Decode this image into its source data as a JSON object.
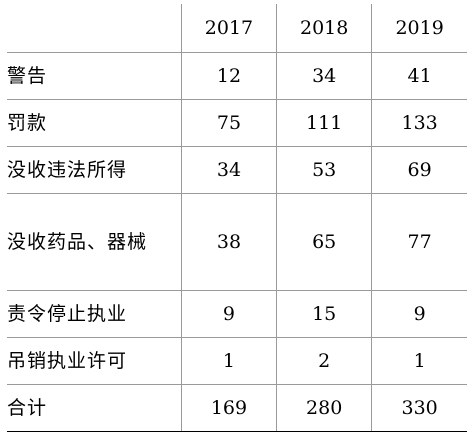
{
  "table": {
    "header": {
      "corner": "",
      "years": [
        "2017",
        "2018",
        "2019"
      ]
    },
    "rows": [
      {
        "label": "警告",
        "values": [
          "12",
          "34",
          "41"
        ]
      },
      {
        "label": "罚款",
        "values": [
          "75",
          "111",
          "133"
        ]
      },
      {
        "label": "没收违法所得",
        "values": [
          "34",
          "53",
          "69"
        ]
      },
      {
        "label": "没收药品、器械",
        "values": [
          "38",
          "65",
          "77"
        ]
      },
      {
        "label": "责令停止执业",
        "values": [
          "9",
          "15",
          "9"
        ]
      },
      {
        "label": "吊销执业许可",
        "values": [
          "1",
          "2",
          "1"
        ]
      },
      {
        "label": "合计",
        "values": [
          "169",
          "280",
          "330"
        ]
      }
    ]
  }
}
